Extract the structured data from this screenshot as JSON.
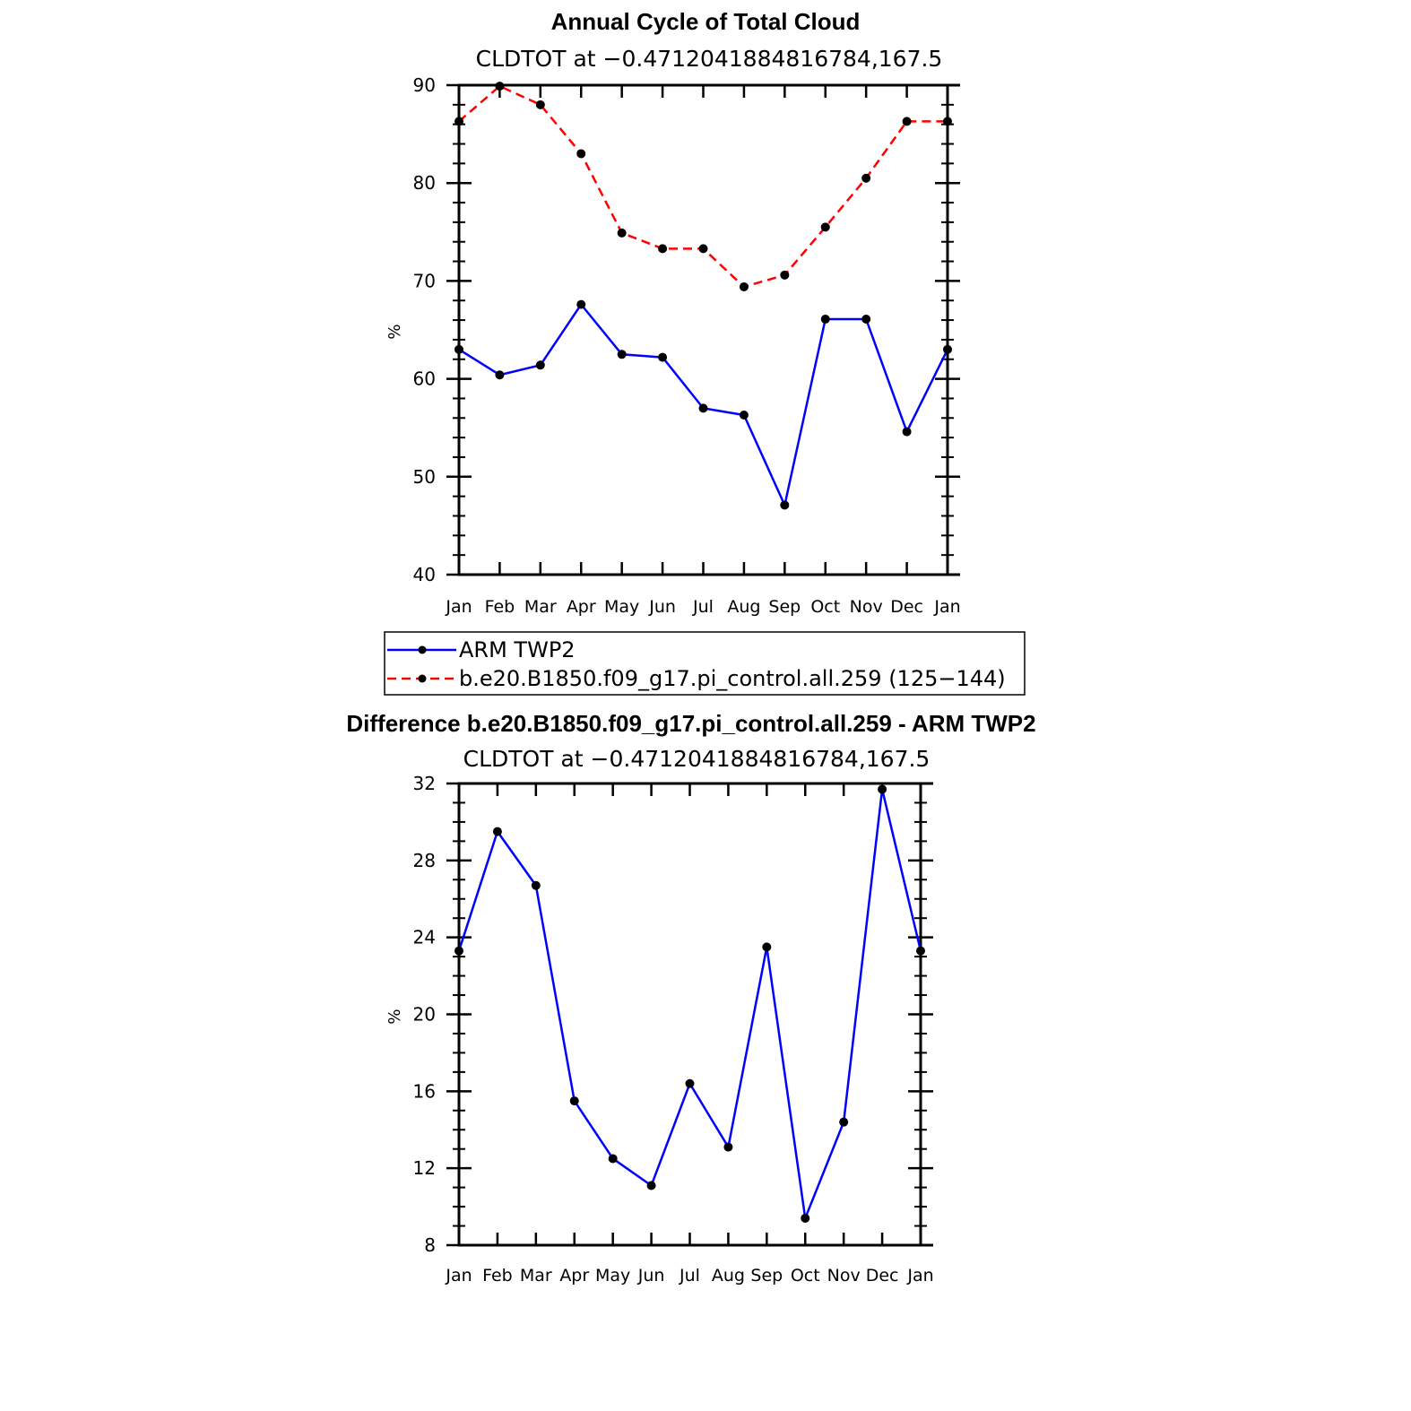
{
  "chart_data": [
    {
      "type": "line",
      "title": "Annual Cycle of Total Cloud",
      "subtitle": "CLDTOT at −0.4712041884816784,167.5",
      "xlabel": "",
      "ylabel": "%",
      "categories": [
        "Jan",
        "Feb",
        "Mar",
        "Apr",
        "May",
        "Jun",
        "Jul",
        "Aug",
        "Sep",
        "Oct",
        "Nov",
        "Dec",
        "Jan"
      ],
      "ylim": [
        40,
        90
      ],
      "yticks": [
        40,
        50,
        60,
        70,
        80,
        90
      ],
      "series": [
        {
          "name": "ARM TWP2",
          "color": "#0000ff",
          "dashed": false,
          "values": [
            63.0,
            60.4,
            61.4,
            67.6,
            62.5,
            62.2,
            57.0,
            56.3,
            47.1,
            66.1,
            66.1,
            54.6,
            63.0
          ]
        },
        {
          "name": "b.e20.B1850.f09_g17.pi_control.all.259 (125−144)",
          "color": "#ff0000",
          "dashed": true,
          "values": [
            86.3,
            89.9,
            88.0,
            83.0,
            74.9,
            73.3,
            73.3,
            69.4,
            70.6,
            75.5,
            80.5,
            86.3,
            86.3
          ]
        }
      ],
      "legend_position": "below"
    },
    {
      "type": "line",
      "title": "Difference b.e20.B1850.f09_g17.pi_control.all.259 - ARM TWP2",
      "subtitle": "CLDTOT at −0.4712041884816784,167.5",
      "xlabel": "",
      "ylabel": "%",
      "categories": [
        "Jan",
        "Feb",
        "Mar",
        "Apr",
        "May",
        "Jun",
        "Jul",
        "Aug",
        "Sep",
        "Oct",
        "Nov",
        "Dec",
        "Jan"
      ],
      "ylim": [
        8,
        32
      ],
      "yticks": [
        8,
        12,
        16,
        20,
        24,
        28,
        32
      ],
      "series": [
        {
          "name": "Difference",
          "color": "#0000ff",
          "dashed": false,
          "values": [
            23.3,
            29.5,
            26.7,
            15.5,
            12.5,
            11.1,
            16.4,
            13.1,
            23.5,
            9.4,
            14.4,
            31.7,
            23.3
          ]
        }
      ]
    }
  ]
}
